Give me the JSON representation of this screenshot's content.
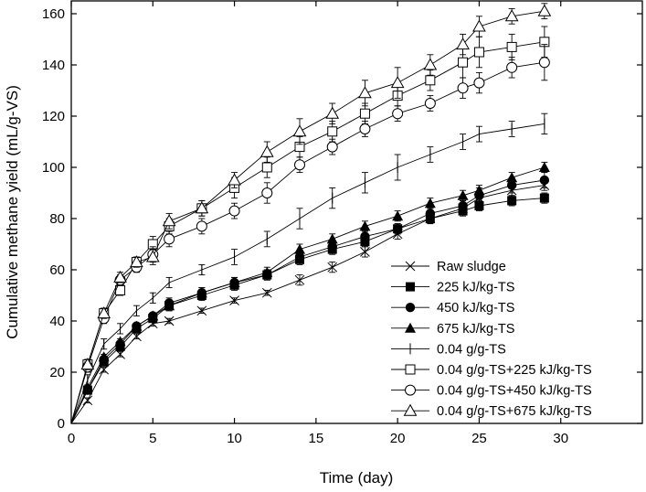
{
  "chart_data": {
    "type": "line",
    "title": "",
    "xlabel": "Time (day)",
    "ylabel": "Cumulative methane yield (mL/g-VS)",
    "xlim": [
      0,
      35
    ],
    "ylim": [
      0,
      165
    ],
    "xticks": [
      0,
      5,
      10,
      15,
      20,
      25,
      30
    ],
    "yticks": [
      0,
      20,
      40,
      60,
      80,
      100,
      120,
      140,
      160
    ],
    "legend_position": "bottom-right",
    "x": [
      0,
      1,
      2,
      3,
      4,
      5,
      6,
      8,
      10,
      12,
      14,
      16,
      18,
      20,
      22,
      24,
      25,
      27,
      29
    ],
    "series": [
      {
        "name": "Raw sludge",
        "marker": "x",
        "values": [
          0,
          9,
          21,
          27,
          34,
          39,
          40,
          44,
          48,
          51,
          56,
          61,
          67,
          74,
          80,
          84,
          88,
          91,
          93
        ],
        "errors": [
          0,
          1,
          1,
          1,
          1,
          1,
          1,
          1,
          1,
          1,
          2,
          2,
          2,
          2,
          2,
          2,
          2,
          2,
          2
        ]
      },
      {
        "name": "225 kJ/kg-TS",
        "marker": "filled-square",
        "values": [
          0,
          13,
          24,
          30,
          37,
          41,
          46,
          50,
          54,
          58,
          64,
          68,
          71,
          76,
          80,
          83,
          85,
          87,
          88
        ],
        "errors": [
          0,
          1,
          1,
          1,
          1,
          1,
          2,
          2,
          2,
          2,
          2,
          2,
          2,
          2,
          2,
          2,
          2,
          2,
          2
        ]
      },
      {
        "name": "450 kJ/kg-TS",
        "marker": "filled-circle",
        "values": [
          0,
          13,
          25,
          31,
          38,
          42,
          47,
          51,
          55,
          58,
          65,
          69,
          73,
          76,
          82,
          85,
          89,
          93,
          95
        ],
        "errors": [
          0,
          1,
          1,
          1,
          1,
          1,
          2,
          2,
          2,
          2,
          2,
          2,
          2,
          2,
          2,
          2,
          3,
          3,
          3
        ]
      },
      {
        "name": "675 kJ/kg-TS",
        "marker": "filled-triangle",
        "values": [
          0,
          14,
          26,
          32,
          38,
          42,
          46,
          51,
          55,
          59,
          68,
          72,
          77,
          81,
          86,
          89,
          91,
          96,
          100
        ],
        "errors": [
          0,
          1,
          1,
          1,
          1,
          1,
          2,
          2,
          2,
          2,
          2,
          2,
          2,
          2,
          2,
          2,
          2,
          2,
          2
        ]
      },
      {
        "name": "0.04 g/g-TS",
        "marker": "plus",
        "values": [
          0,
          17,
          31,
          37,
          44,
          49,
          55,
          60,
          65,
          72,
          80,
          88,
          94,
          100,
          105,
          110,
          113,
          115,
          117
        ],
        "errors": [
          0,
          2,
          2,
          2,
          2,
          2,
          2,
          2,
          3,
          3,
          4,
          4,
          4,
          5,
          3,
          3,
          3,
          3,
          4
        ]
      },
      {
        "name": "0.04 g/g-TS+225 kJ/kg-TS",
        "marker": "open-square",
        "values": [
          0,
          23,
          43,
          52,
          63,
          70,
          77,
          84,
          92,
          100,
          108,
          114,
          121,
          128,
          134,
          141,
          145,
          147,
          149
        ],
        "errors": [
          0,
          2,
          2,
          2,
          2,
          3,
          3,
          3,
          4,
          4,
          4,
          4,
          4,
          4,
          4,
          6,
          6,
          5,
          6
        ]
      },
      {
        "name": "0.04 g/g-TS+450 kJ/kg-TS",
        "marker": "open-circle",
        "values": [
          0,
          22,
          41,
          56,
          61,
          66,
          72,
          77,
          83,
          90,
          101,
          108,
          115,
          121,
          125,
          131,
          133,
          139,
          141
        ],
        "errors": [
          0,
          2,
          2,
          2,
          2,
          3,
          3,
          3,
          3,
          4,
          3,
          3,
          3,
          3,
          3,
          4,
          4,
          4,
          7
        ]
      },
      {
        "name": "0.04 g/g-TS+675 kJ/kg-TS",
        "marker": "open-triangle",
        "values": [
          0,
          23,
          43,
          57,
          63,
          65,
          79,
          84,
          95,
          106,
          114,
          121,
          129,
          133,
          140,
          148,
          155,
          159,
          161
        ],
        "errors": [
          0,
          2,
          2,
          2,
          2,
          3,
          3,
          3,
          3,
          4,
          5,
          4,
          5,
          6,
          4,
          4,
          4,
          3,
          3
        ]
      }
    ]
  }
}
